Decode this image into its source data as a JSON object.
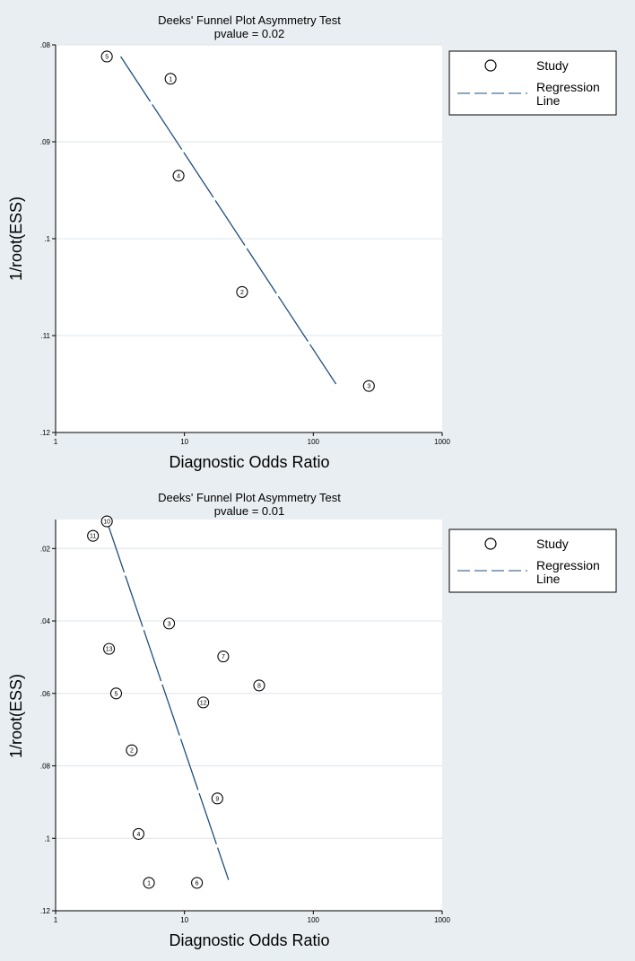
{
  "chart_data": [
    {
      "type": "scatter",
      "title": "Deeks' Funnel Plot Asymmetry Test",
      "subtitle": "pvalue  =   0.02",
      "xlabel": "Diagnostic Odds Ratio",
      "ylabel": "1/root(ESS)",
      "xscale": "log",
      "xlim": [
        1,
        1000
      ],
      "ylim": [
        0.08,
        0.12
      ],
      "y_inverted": true,
      "xticks": [
        1,
        10,
        100,
        1000
      ],
      "xtick_labels": [
        "1",
        "10",
        "100",
        "1000"
      ],
      "yticks": [
        0.08,
        0.09,
        0.1,
        0.11,
        0.12
      ],
      "ytick_labels": [
        ".08",
        ".09",
        ".1",
        ".11",
        ".12"
      ],
      "points": [
        {
          "label": "5",
          "x": 2.5,
          "y": 0.0812
        },
        {
          "label": "1",
          "x": 7.8,
          "y": 0.0835
        },
        {
          "label": "4",
          "x": 9.0,
          "y": 0.0935
        },
        {
          "label": "2",
          "x": 28,
          "y": 0.1055
        },
        {
          "label": "3",
          "x": 270,
          "y": 0.1152
        }
      ],
      "regression_line": {
        "x": [
          3.2,
          150
        ],
        "y": [
          0.0812,
          0.115
        ]
      },
      "legend": [
        "Study",
        "Regression",
        "Line"
      ],
      "legend_position": "right"
    },
    {
      "type": "scatter",
      "title": "Deeks' Funnel Plot Asymmetry Test",
      "subtitle": "pvalue  =   0.01",
      "xlabel": "Diagnostic Odds Ratio",
      "ylabel": "1/root(ESS)",
      "xscale": "log",
      "xlim": [
        1,
        1000
      ],
      "ylim": [
        0.012,
        0.12
      ],
      "y_inverted": true,
      "xticks": [
        1,
        10,
        100,
        1000
      ],
      "xtick_labels": [
        "1",
        "10",
        "100",
        "1000"
      ],
      "yticks": [
        0.02,
        0.04,
        0.06,
        0.08,
        0.1,
        0.12
      ],
      "ytick_labels": [
        ".02",
        ".04",
        ".06",
        ".08",
        ".1",
        ".12"
      ],
      "points": [
        {
          "label": "10",
          "x": 2.5,
          "y": 0.0125
        },
        {
          "label": "11",
          "x": 1.95,
          "y": 0.0165
        },
        {
          "label": "3",
          "x": 7.6,
          "y": 0.0407
        },
        {
          "label": "13",
          "x": 2.6,
          "y": 0.0477
        },
        {
          "label": "7",
          "x": 20,
          "y": 0.0498
        },
        {
          "label": "8",
          "x": 38,
          "y": 0.0578
        },
        {
          "label": "5",
          "x": 2.95,
          "y": 0.06
        },
        {
          "label": "12",
          "x": 14,
          "y": 0.0625
        },
        {
          "label": "2",
          "x": 3.9,
          "y": 0.0757
        },
        {
          "label": "9",
          "x": 18,
          "y": 0.089
        },
        {
          "label": "4",
          "x": 4.4,
          "y": 0.0988
        },
        {
          "label": "1",
          "x": 5.3,
          "y": 0.1123
        },
        {
          "label": "6",
          "x": 12.5,
          "y": 0.1123
        }
      ],
      "regression_line": {
        "x": [
          2.5,
          22
        ],
        "y": [
          0.0125,
          0.1115
        ]
      },
      "legend": [
        "Study",
        "Regression",
        "Line"
      ],
      "legend_position": "right"
    }
  ],
  "colors": {
    "background": "#e9eef2",
    "plot_area": "#ffffff",
    "gridline": "#dde4e9",
    "regression": "#1f4e79",
    "marker": "#000000"
  }
}
